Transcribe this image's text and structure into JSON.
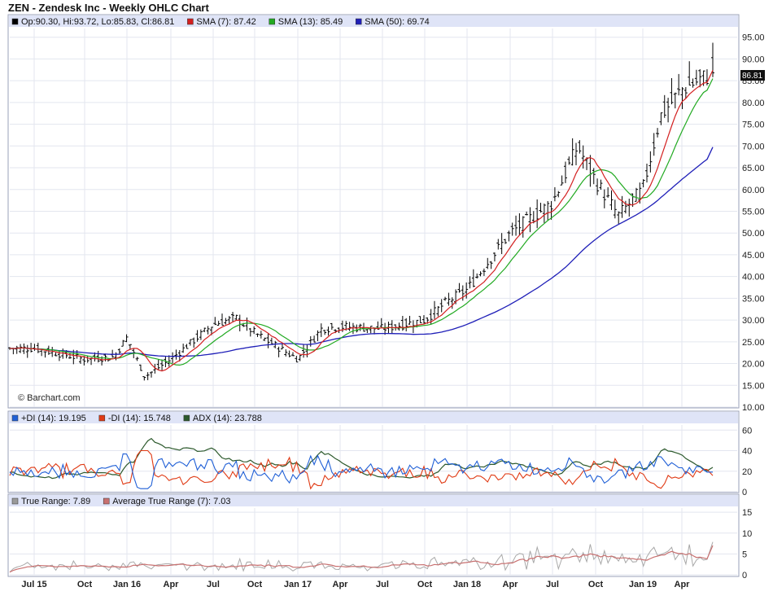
{
  "title": "ZEN - Zendesk Inc - Weekly OHLC Chart",
  "watermark": "© Barchart.com",
  "last_price_label": "86.81",
  "panels": {
    "price": {
      "legend": [
        {
          "text": "Op:90.30, Hi:93.72, Lo:85.83, Cl:86.81",
          "color": "#000000"
        },
        {
          "text": "SMA (7): 87.42",
          "color": "#d32020"
        },
        {
          "text": "SMA (13): 85.49",
          "color": "#22aa22"
        },
        {
          "text": "SMA (50): 69.74",
          "color": "#1f1fb8"
        }
      ]
    },
    "dmi": {
      "legend": [
        {
          "text": "+DI (14): 19.195",
          "color": "#1f5fd6"
        },
        {
          "text": "-DI (14): 15.748",
          "color": "#e03a14"
        },
        {
          "text": "ADX (14): 23.788",
          "color": "#2d5a2d"
        }
      ]
    },
    "tr": {
      "legend": [
        {
          "text": "True Range: 7.89",
          "color": "#9a9a9a"
        },
        {
          "text": "Average True Range (7): 7.03",
          "color": "#c87070"
        }
      ]
    }
  },
  "chart_data": [
    {
      "type": "ohlc",
      "title": "ZEN - Zendesk Inc - Weekly OHLC Chart",
      "x_ticks": [
        "Jul 15",
        "Oct",
        "Jan 16",
        "Apr",
        "Jul",
        "Oct",
        "Jan 17",
        "Apr",
        "Jul",
        "Oct",
        "Jan 18",
        "Apr",
        "Jul",
        "Oct",
        "Jan 19",
        "Apr"
      ],
      "y_ticks": [
        "10.00",
        "15.00",
        "20.00",
        "25.00",
        "30.00",
        "35.00",
        "40.00",
        "45.00",
        "50.00",
        "55.00",
        "60.00",
        "65.00",
        "70.00",
        "75.00",
        "80.00",
        "85.00",
        "90.00",
        "95.00"
      ],
      "ylim": [
        10,
        97
      ],
      "close_anchors": [
        {
          "x": "Jul 15",
          "y": 23.5
        },
        {
          "x": "Oct",
          "y": 21
        },
        {
          "x": "Dec 15",
          "y": 21.5
        },
        {
          "x": "Jan 16",
          "y": 26
        },
        {
          "x": "Feb 16",
          "y": 17
        },
        {
          "x": "Apr",
          "y": 21
        },
        {
          "x": "Jul",
          "y": 29
        },
        {
          "x": "Aug 16",
          "y": 30.5
        },
        {
          "x": "Oct",
          "y": 27
        },
        {
          "x": "Jan 17",
          "y": 21
        },
        {
          "x": "Mar 17",
          "y": 28
        },
        {
          "x": "Apr",
          "y": 28.5
        },
        {
          "x": "Jul",
          "y": 28
        },
        {
          "x": "Oct",
          "y": 30
        },
        {
          "x": "Nov 17",
          "y": 34
        },
        {
          "x": "Jan 18",
          "y": 37
        },
        {
          "x": "Apr",
          "y": 50
        },
        {
          "x": "Jul",
          "y": 57
        },
        {
          "x": "Sep 18",
          "y": 70
        },
        {
          "x": "Oct",
          "y": 62
        },
        {
          "x": "Dec 18",
          "y": 54
        },
        {
          "x": "Jan 19",
          "y": 60
        },
        {
          "x": "Feb 19",
          "y": 77
        },
        {
          "x": "Apr",
          "y": 83
        },
        {
          "x": "May 19",
          "y": 86.81
        }
      ],
      "series": [
        {
          "name": "SMA (7)",
          "last": 87.42
        },
        {
          "name": "SMA (13)",
          "last": 85.49
        },
        {
          "name": "SMA (50)",
          "last": 69.74
        }
      ],
      "last_bar": {
        "open": 90.3,
        "high": 93.72,
        "low": 85.83,
        "close": 86.81
      }
    },
    {
      "type": "line",
      "y_ticks": [
        "0",
        "20",
        "40",
        "60"
      ],
      "ylim": [
        0,
        65
      ],
      "series": [
        {
          "name": "+DI (14)",
          "last": 19.195
        },
        {
          "name": "-DI (14)",
          "last": 15.748
        },
        {
          "name": "ADX (14)",
          "last": 23.788
        }
      ]
    },
    {
      "type": "line",
      "y_ticks": [
        "0",
        "5",
        "10",
        "15"
      ],
      "ylim": [
        0,
        16
      ],
      "series": [
        {
          "name": "True Range",
          "last": 7.89
        },
        {
          "name": "Average True Range (7)",
          "last": 7.03
        }
      ]
    }
  ]
}
